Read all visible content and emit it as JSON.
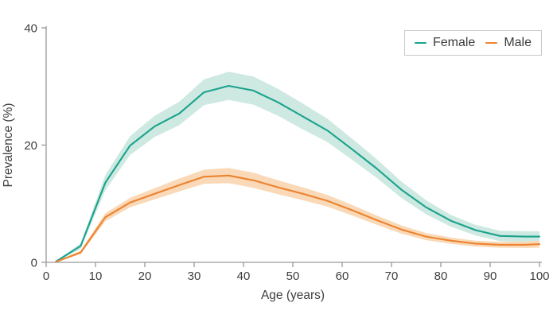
{
  "figure": {
    "background": "#ffffff",
    "axis_color": "#999999",
    "text_color": "#3e3e3e"
  },
  "chart_data": {
    "type": "line",
    "title": "",
    "xlabel": "Age (years)",
    "ylabel": "Prevalence (%)",
    "xlim": [
      0,
      100
    ],
    "ylim": [
      0,
      40
    ],
    "x_ticks": [
      0,
      10,
      20,
      30,
      40,
      50,
      60,
      70,
      80,
      90,
      100
    ],
    "y_ticks": [
      0,
      20,
      40
    ],
    "grid": false,
    "legend_position": "top-right",
    "x": [
      2,
      7,
      12,
      17,
      22,
      27,
      32,
      37,
      42,
      47,
      52,
      57,
      62,
      67,
      72,
      77,
      82,
      87,
      92,
      97,
      100
    ],
    "series": [
      {
        "name": "Female",
        "color": "#1aa28d",
        "band_color": "#cde9e1",
        "values": [
          0.15,
          2.8,
          13.6,
          19.9,
          23.2,
          25.4,
          29.0,
          30.1,
          29.3,
          27.3,
          24.9,
          22.5,
          19.3,
          16.0,
          12.4,
          9.4,
          7.1,
          5.5,
          4.5,
          4.4,
          4.4
        ],
        "ci_half": [
          0.1,
          0.5,
          1.3,
          1.6,
          1.8,
          2.0,
          2.2,
          2.4,
          2.4,
          2.3,
          2.2,
          2.0,
          1.8,
          1.6,
          1.4,
          1.2,
          1.0,
          0.9,
          0.9,
          0.9,
          0.9
        ]
      },
      {
        "name": "Male",
        "color": "#ec8330",
        "band_color": "#f9d9b7",
        "values": [
          0.1,
          1.7,
          7.7,
          10.2,
          11.7,
          13.2,
          14.6,
          14.8,
          14.0,
          12.8,
          11.7,
          10.5,
          8.9,
          7.2,
          5.6,
          4.4,
          3.7,
          3.2,
          3.0,
          3.0,
          3.1
        ],
        "ci_half": [
          0.05,
          0.3,
          0.7,
          0.8,
          0.95,
          1.1,
          1.2,
          1.3,
          1.3,
          1.2,
          1.1,
          1.0,
          0.9,
          0.8,
          0.7,
          0.6,
          0.55,
          0.5,
          0.5,
          0.55,
          0.6
        ]
      }
    ]
  }
}
